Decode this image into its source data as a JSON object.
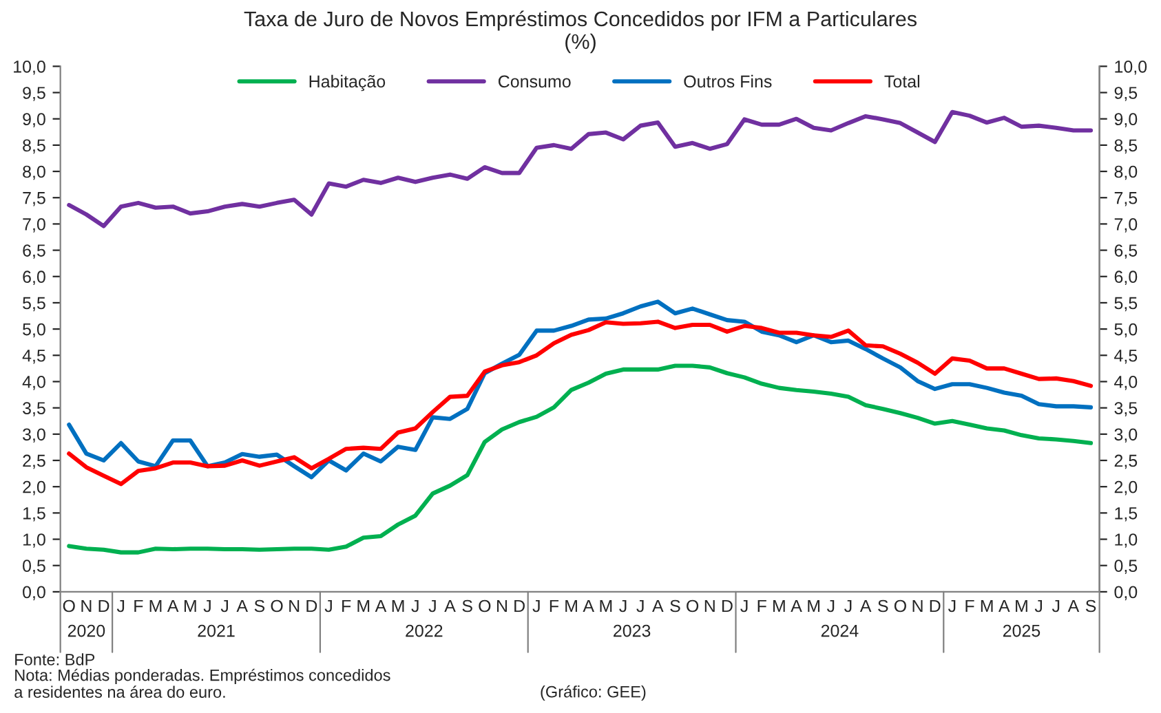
{
  "chart_data": {
    "type": "line",
    "title": "Taxa de Juro de Novos Empréstimos Concedidos por IFM a Particulares\n(%)",
    "categories": [
      "O",
      "N",
      "D",
      "J",
      "F",
      "M",
      "A",
      "M",
      "J",
      "J",
      "A",
      "S",
      "O",
      "N",
      "D",
      "J",
      "F",
      "M",
      "A",
      "M",
      "J",
      "J",
      "A",
      "S",
      "O",
      "N",
      "D",
      "J",
      "F",
      "M",
      "A",
      "M",
      "J",
      "J",
      "A",
      "S",
      "O",
      "N",
      "D",
      "J",
      "F",
      "M",
      "A",
      "M",
      "J",
      "J",
      "A",
      "S",
      "O",
      "N",
      "D",
      "J",
      "F",
      "M",
      "A",
      "M",
      "J",
      "J",
      "A",
      "S"
    ],
    "series": [
      {
        "name": "Habitação",
        "color": "#00b050",
        "values": [
          0.87,
          0.82,
          0.8,
          0.75,
          0.75,
          0.82,
          0.81,
          0.82,
          0.82,
          0.81,
          0.81,
          0.8,
          0.81,
          0.82,
          0.82,
          0.8,
          0.86,
          1.03,
          1.06,
          1.28,
          1.45,
          1.87,
          2.02,
          2.22,
          2.85,
          3.09,
          3.23,
          3.33,
          3.51,
          3.84,
          3.98,
          4.15,
          4.23,
          4.23,
          4.23,
          4.3,
          4.3,
          4.27,
          4.16,
          4.08,
          3.96,
          3.88,
          3.84,
          3.81,
          3.77,
          3.71,
          3.55,
          3.48,
          3.4,
          3.31,
          3.2,
          3.25,
          3.18,
          3.11,
          3.07,
          2.98,
          2.92,
          2.9,
          2.87,
          2.83
        ]
      },
      {
        "name": "Consumo",
        "color": "#7030a0",
        "values": [
          7.36,
          7.18,
          6.96,
          7.33,
          7.4,
          7.31,
          7.33,
          7.2,
          7.24,
          7.33,
          7.38,
          7.33,
          7.4,
          7.46,
          7.18,
          7.77,
          7.71,
          7.84,
          7.78,
          7.88,
          7.8,
          7.88,
          7.94,
          7.86,
          8.08,
          7.97,
          7.97,
          8.45,
          8.5,
          8.43,
          8.71,
          8.74,
          8.61,
          8.87,
          8.93,
          8.47,
          8.54,
          8.43,
          8.52,
          8.99,
          8.89,
          8.89,
          9.0,
          8.83,
          8.78,
          8.92,
          9.05,
          8.99,
          8.92,
          8.74,
          8.56,
          9.13,
          9.06,
          8.93,
          9.02,
          8.85,
          8.87,
          8.83,
          8.78,
          8.78
        ]
      },
      {
        "name": "Outros Fins",
        "color": "#0070c0",
        "values": [
          3.18,
          2.63,
          2.5,
          2.83,
          2.48,
          2.39,
          2.88,
          2.88,
          2.39,
          2.46,
          2.62,
          2.57,
          2.61,
          2.39,
          2.18,
          2.5,
          2.31,
          2.63,
          2.48,
          2.76,
          2.7,
          3.32,
          3.29,
          3.48,
          4.16,
          4.34,
          4.51,
          4.97,
          4.97,
          5.06,
          5.18,
          5.2,
          5.3,
          5.43,
          5.52,
          5.3,
          5.39,
          5.28,
          5.17,
          5.14,
          4.95,
          4.88,
          4.75,
          4.88,
          4.75,
          4.78,
          4.62,
          4.44,
          4.27,
          4.01,
          3.86,
          3.95,
          3.95,
          3.88,
          3.79,
          3.73,
          3.57,
          3.53,
          3.53,
          3.51
        ]
      },
      {
        "name": "Total",
        "color": "#ff0000",
        "values": [
          2.63,
          2.37,
          2.21,
          2.05,
          2.3,
          2.35,
          2.46,
          2.46,
          2.39,
          2.4,
          2.5,
          2.4,
          2.48,
          2.56,
          2.35,
          2.53,
          2.72,
          2.74,
          2.72,
          3.03,
          3.11,
          3.42,
          3.71,
          3.73,
          4.19,
          4.31,
          4.37,
          4.5,
          4.73,
          4.89,
          4.98,
          5.13,
          5.1,
          5.11,
          5.14,
          5.02,
          5.08,
          5.08,
          4.95,
          5.06,
          5.02,
          4.93,
          4.93,
          4.88,
          4.85,
          4.97,
          4.69,
          4.67,
          4.53,
          4.36,
          4.15,
          4.44,
          4.4,
          4.25,
          4.25,
          4.15,
          4.05,
          4.06,
          4.01,
          3.92
        ]
      }
    ],
    "ylim": [
      0,
      10
    ],
    "yticks": [
      {
        "value": 0,
        "label": "0,0"
      },
      {
        "value": 0.5,
        "label": "0,5"
      },
      {
        "value": 1,
        "label": "1,0"
      },
      {
        "value": 1.5,
        "label": "1,5"
      },
      {
        "value": 2,
        "label": "2,0"
      },
      {
        "value": 2.5,
        "label": "2,5"
      },
      {
        "value": 3,
        "label": "3,0"
      },
      {
        "value": 3.5,
        "label": "3,5"
      },
      {
        "value": 4,
        "label": "4,0"
      },
      {
        "value": 4.5,
        "label": "4,5"
      },
      {
        "value": 5,
        "label": "5,0"
      },
      {
        "value": 5.5,
        "label": "5,5"
      },
      {
        "value": 6,
        "label": "6,0"
      },
      {
        "value": 6.5,
        "label": "6,5"
      },
      {
        "value": 7,
        "label": "7,0"
      },
      {
        "value": 7.5,
        "label": "7,5"
      },
      {
        "value": 8,
        "label": "8,0"
      },
      {
        "value": 8.5,
        "label": "8,5"
      },
      {
        "value": 9,
        "label": "9,0"
      },
      {
        "value": 9.5,
        "label": "9,5"
      },
      {
        "value": 10,
        "label": "10,0"
      }
    ],
    "y2lim": [
      0,
      10
    ],
    "y2ticks": [
      {
        "value": 0,
        "label": "0,0"
      },
      {
        "value": 0.5,
        "label": "0,5"
      },
      {
        "value": 1,
        "label": "1,0"
      },
      {
        "value": 1.5,
        "label": "1,5"
      },
      {
        "value": 2,
        "label": "2,0"
      },
      {
        "value": 2.5,
        "label": "2,5"
      },
      {
        "value": 3,
        "label": "3,0"
      },
      {
        "value": 3.5,
        "label": "3,5"
      },
      {
        "value": 4,
        "label": "4,0"
      },
      {
        "value": 4.5,
        "label": "4,5"
      },
      {
        "value": 5,
        "label": "5,0"
      },
      {
        "value": 5.5,
        "label": "5,5"
      },
      {
        "value": 6,
        "label": "6,0"
      },
      {
        "value": 6.5,
        "label": "6,5"
      },
      {
        "value": 7,
        "label": "7,0"
      },
      {
        "value": 7.5,
        "label": "7,5"
      },
      {
        "value": 8,
        "label": "8,0"
      },
      {
        "value": 8.5,
        "label": "8,5"
      },
      {
        "value": 9,
        "label": "9,0"
      },
      {
        "value": 9.5,
        "label": "9,5"
      },
      {
        "value": 10,
        "label": "10,0"
      }
    ],
    "annotations": [
      "2020",
      "2021",
      "2022",
      "2023",
      "2024",
      "2025",
      "Fonte: BdP",
      "Nota: Médias ponderadas. Empréstimos concedidos\na residentes na área do euro.",
      "(Gráfico: GEE)"
    ],
    "legend": "top",
    "grid": false,
    "marker": "none",
    "line_style": "solid"
  }
}
